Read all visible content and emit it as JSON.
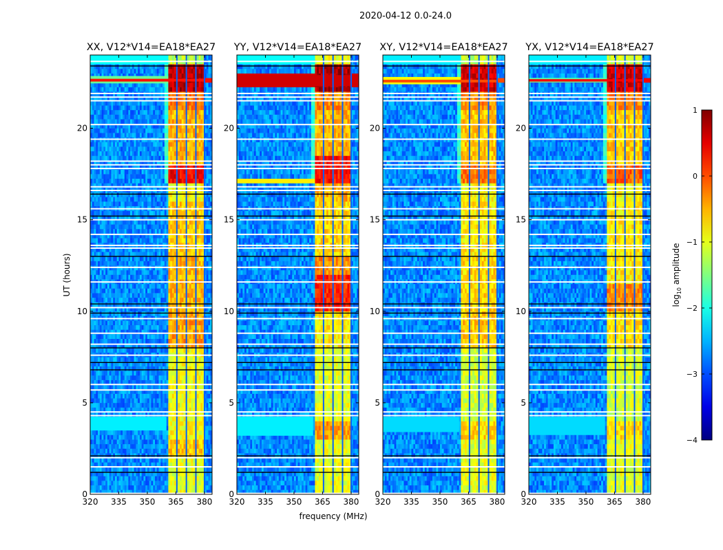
{
  "chart_data": {
    "type": "heatmap",
    "title": "2020-04-12 0.0-24.0",
    "xlabel": "frequency (MHz)",
    "ylabel": "UT (hours)",
    "xlim": [
      320,
      384
    ],
    "ylim": [
      0,
      24
    ],
    "xticks": [
      320,
      335,
      350,
      365,
      380
    ],
    "yticks": [
      0,
      5,
      10,
      15,
      20
    ],
    "colorbar": {
      "label": "log",
      "label_sub": "10",
      "label_rest": " amplitude",
      "vmin": -4,
      "vmax": 1,
      "ticks": [
        1,
        0,
        -1,
        -2,
        -3,
        -4
      ],
      "tick_labels": [
        "1",
        "0",
        "−1",
        "−2",
        "−3",
        "−4"
      ],
      "colormap": "jet"
    },
    "background_level": -2.7,
    "rfi_band_MHz": [
      361,
      380
    ],
    "rfi_subchannel_gaps_MHz": [
      365.5,
      370.5,
      375.5
    ],
    "flagged_rows_hours": [
      23.65,
      21.9,
      21.7,
      21.5,
      20.2,
      19.4,
      18.2,
      18.0,
      17.8,
      16.8,
      16.6,
      15.6,
      15.0,
      14.2,
      13.6,
      13.45,
      12.4,
      11.6,
      10.2,
      9.6,
      8.8,
      8.2,
      7.6,
      6.0,
      5.7,
      4.5,
      4.3,
      2.0,
      1.5,
      0.05
    ],
    "dark_rows_hours": [
      23.4,
      16.4,
      15.2,
      13.0,
      10.4,
      9.9,
      8.0,
      7.2,
      6.8,
      2.1,
      1.2
    ],
    "panels": [
      {
        "title": "XX, V12*V14=EA18*EA27",
        "rfi_segments": [
          [
            0,
            2,
            -1.0
          ],
          [
            2,
            3,
            -0.6
          ],
          [
            3,
            8,
            -0.9
          ],
          [
            8,
            10,
            -0.4
          ],
          [
            10,
            13,
            -0.5
          ],
          [
            13,
            16,
            -0.6
          ],
          [
            16,
            17,
            -0.9
          ],
          [
            17,
            18,
            0.4
          ],
          [
            18,
            21,
            -0.5
          ],
          [
            21,
            22,
            -0.2
          ],
          [
            22,
            23.5,
            0.7
          ],
          [
            23.5,
            24,
            -1.2
          ]
        ],
        "features": [
          [
            22.45,
            22.85,
            320,
            361,
            -1.6
          ],
          [
            22.55,
            22.7,
            320,
            384,
            0.3
          ],
          [
            3.5,
            4.2,
            320,
            360,
            -2.2
          ],
          [
            23.5,
            24,
            320,
            361,
            -2.1
          ]
        ]
      },
      {
        "title": "YY, V12*V14=EA18*EA27",
        "rfi_segments": [
          [
            0,
            3,
            -1.0
          ],
          [
            3,
            4,
            -0.4
          ],
          [
            4,
            8,
            -1.0
          ],
          [
            8,
            10,
            -0.8
          ],
          [
            10,
            12,
            0.2
          ],
          [
            12,
            13,
            -0.3
          ],
          [
            13,
            16,
            -0.7
          ],
          [
            16,
            17,
            -0.5
          ],
          [
            17,
            18.5,
            0.3
          ],
          [
            18.5,
            21,
            -0.5
          ],
          [
            21,
            22,
            -0.3
          ],
          [
            22,
            23.5,
            0.8
          ],
          [
            23.5,
            24,
            -1.0
          ]
        ],
        "features": [
          [
            22.3,
            22.9,
            320,
            384,
            0.6
          ],
          [
            17.0,
            17.2,
            320,
            361,
            -0.8
          ],
          [
            3.2,
            4.2,
            320,
            360,
            -2.2
          ],
          [
            23.5,
            24,
            320,
            361,
            -2.1
          ]
        ]
      },
      {
        "title": "XY, V12*V14=EA18*EA27",
        "rfi_segments": [
          [
            0,
            3,
            -1.0
          ],
          [
            3,
            4,
            -0.7
          ],
          [
            4,
            8,
            -1.1
          ],
          [
            8,
            10,
            -0.6
          ],
          [
            10,
            13,
            -0.7
          ],
          [
            13,
            16,
            -0.8
          ],
          [
            16,
            17,
            -0.9
          ],
          [
            17,
            18,
            -0.2
          ],
          [
            18,
            21,
            -0.6
          ],
          [
            21,
            22,
            -0.3
          ],
          [
            22,
            23.5,
            0.6
          ],
          [
            23.5,
            24,
            -1.2
          ]
        ],
        "features": [
          [
            22.4,
            22.8,
            320,
            361,
            -0.9
          ],
          [
            22.5,
            22.65,
            320,
            384,
            0.0
          ],
          [
            3.4,
            4.2,
            320,
            360,
            -2.3
          ],
          [
            23.5,
            24,
            320,
            361,
            -2.2
          ]
        ]
      },
      {
        "title": "YX, V12*V14=EA18*EA27",
        "rfi_segments": [
          [
            0,
            3,
            -1.0
          ],
          [
            3,
            4,
            -0.7
          ],
          [
            4,
            8,
            -1.1
          ],
          [
            8,
            10,
            -0.7
          ],
          [
            10,
            11.5,
            -0.3
          ],
          [
            11.5,
            13,
            -0.8
          ],
          [
            13,
            16,
            -0.8
          ],
          [
            16,
            17,
            -0.9
          ],
          [
            17,
            18,
            -0.1
          ],
          [
            18,
            21,
            -0.6
          ],
          [
            21,
            22,
            -0.3
          ],
          [
            22,
            23.5,
            0.6
          ],
          [
            23.5,
            24,
            -1.2
          ]
        ],
        "features": [
          [
            22.5,
            22.75,
            320,
            361,
            -1.7
          ],
          [
            22.55,
            22.68,
            320,
            384,
            0.4
          ],
          [
            3.3,
            4.2,
            320,
            360,
            -2.3
          ],
          [
            23.5,
            24,
            320,
            361,
            -2.2
          ]
        ]
      }
    ]
  }
}
